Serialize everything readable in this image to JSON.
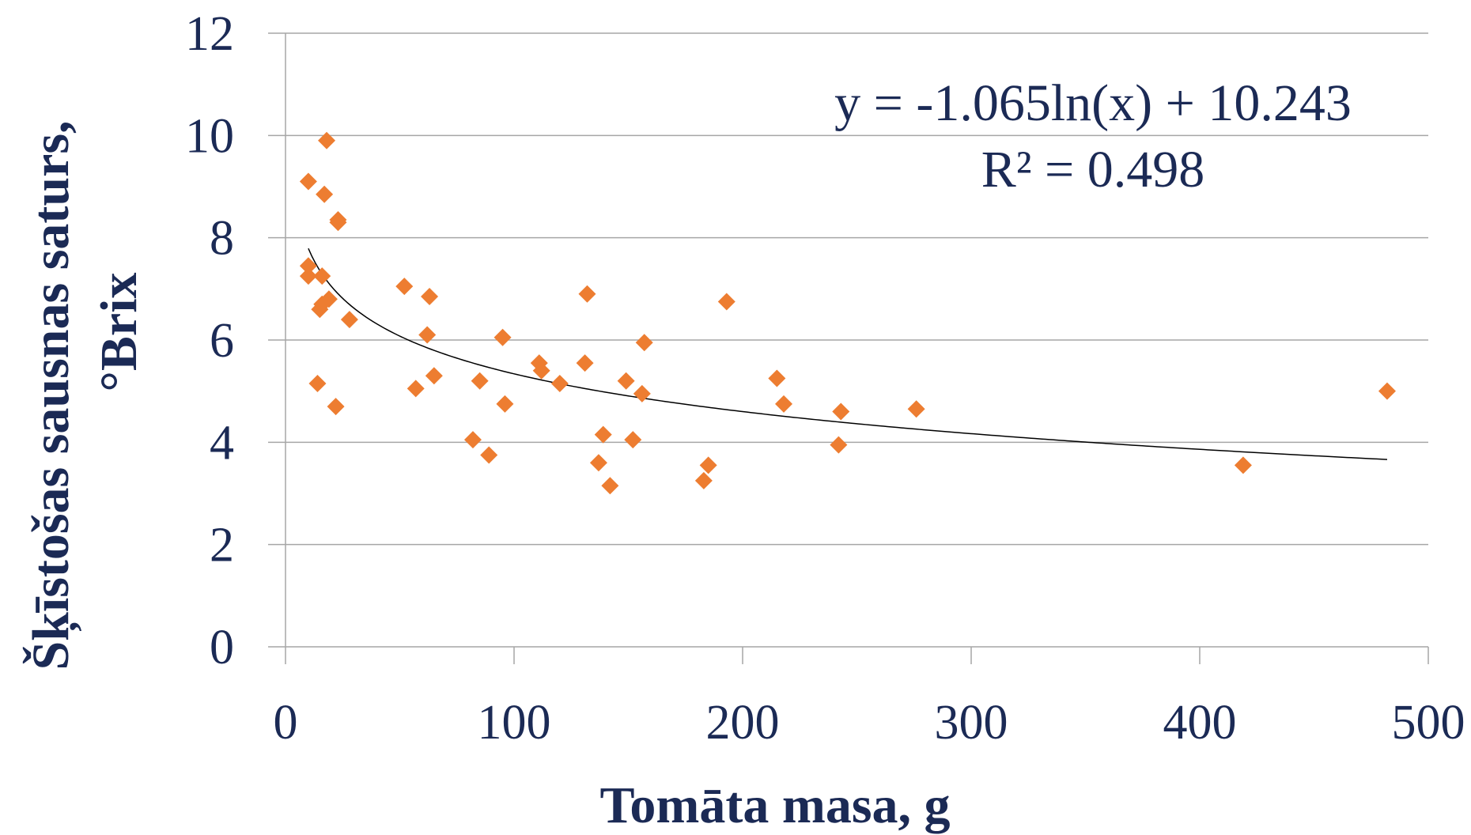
{
  "chart_data": {
    "type": "scatter",
    "title": "",
    "xlabel": "Tomāta masa, g",
    "ylabel_line1": "Šķīstošas sausnas saturs,",
    "ylabel_line2": "°Brix",
    "xlim": [
      0,
      500
    ],
    "ylim": [
      0,
      12
    ],
    "x_ticks": [
      0,
      100,
      200,
      300,
      400,
      500
    ],
    "y_ticks": [
      0,
      2,
      4,
      6,
      8,
      10,
      12
    ],
    "grid": "horizontal",
    "legend": "none",
    "marker_color": "#ED7D31",
    "trendline_color": "#000000",
    "series": [
      {
        "marker": "diamond",
        "points": [
          [
            10,
            7.25
          ],
          [
            10,
            7.45
          ],
          [
            10,
            9.1
          ],
          [
            14,
            5.15
          ],
          [
            15,
            6.6
          ],
          [
            16,
            6.7
          ],
          [
            16,
            7.25
          ],
          [
            17,
            8.85
          ],
          [
            18,
            9.9
          ],
          [
            19,
            6.8
          ],
          [
            22,
            4.7
          ],
          [
            23,
            8.3
          ],
          [
            23,
            8.35
          ],
          [
            28,
            6.4
          ],
          [
            52,
            7.05
          ],
          [
            57,
            5.05
          ],
          [
            62,
            6.1
          ],
          [
            63,
            6.85
          ],
          [
            65,
            5.3
          ],
          [
            82,
            4.05
          ],
          [
            85,
            5.2
          ],
          [
            89,
            3.75
          ],
          [
            95,
            6.05
          ],
          [
            96,
            4.75
          ],
          [
            111,
            5.55
          ],
          [
            112,
            5.4
          ],
          [
            120,
            5.15
          ],
          [
            131,
            5.55
          ],
          [
            132,
            6.9
          ],
          [
            137,
            3.6
          ],
          [
            139,
            4.15
          ],
          [
            142,
            3.15
          ],
          [
            149,
            5.2
          ],
          [
            152,
            4.05
          ],
          [
            156,
            4.95
          ],
          [
            157,
            5.95
          ],
          [
            183,
            3.25
          ],
          [
            185,
            3.55
          ],
          [
            193,
            6.75
          ],
          [
            215,
            5.25
          ],
          [
            218,
            4.75
          ],
          [
            242,
            3.95
          ],
          [
            243,
            4.6
          ],
          [
            276,
            4.65
          ],
          [
            419,
            3.55
          ],
          [
            482,
            5.0
          ]
        ]
      }
    ],
    "trendline": {
      "type": "logarithmic",
      "a": -1.065,
      "b": 10.243,
      "x_range": [
        10,
        482
      ]
    },
    "annotations": {
      "equation": "y = -1.065ln(x) + 10.243",
      "r_squared": "R² = 0.498"
    }
  }
}
